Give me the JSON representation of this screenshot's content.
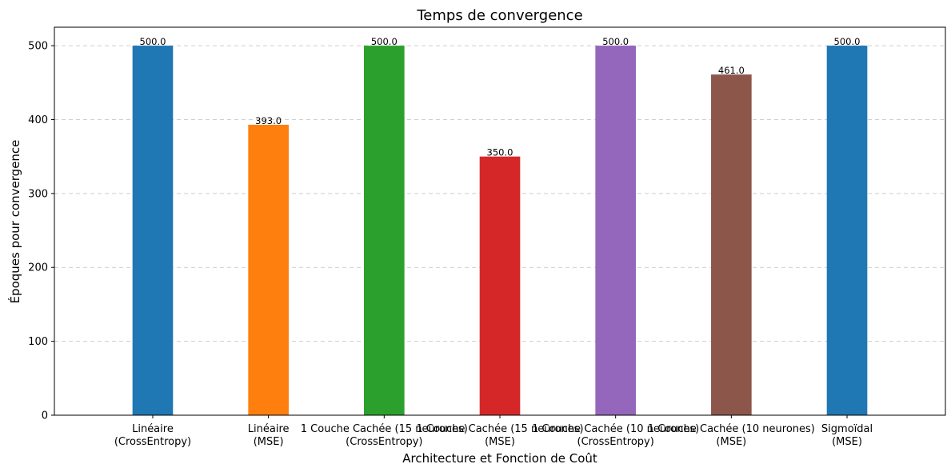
{
  "chart_data": {
    "type": "bar",
    "title": "Temps de convergence",
    "xlabel": "Architecture et Fonction de Coût",
    "ylabel": "Époques pour convergence",
    "categories": [
      [
        "Linéaire",
        "(CrossEntropy)"
      ],
      [
        "Linéaire",
        "(MSE)"
      ],
      [
        "1 Couche Cachée (15 neurones)",
        "(CrossEntropy)"
      ],
      [
        "1 Couche Cachée (15 neurones)",
        "(MSE)"
      ],
      [
        "1 Couche Cachée (10 neurones)",
        "(CrossEntropy)"
      ],
      [
        "1 Couche Cachée (10 neurones)",
        "(MSE)"
      ],
      [
        "Sigmoïdal",
        "(MSE)"
      ]
    ],
    "values": [
      500,
      393,
      500,
      350,
      500,
      461,
      500
    ],
    "value_labels": [
      "500.0",
      "393.0",
      "500.0",
      "350.0",
      "500.0",
      "461.0",
      "500.0"
    ],
    "bar_colors": [
      "#1f77b4",
      "#ff7f0e",
      "#2ca02c",
      "#d62728",
      "#9467bd",
      "#8c564b",
      "#1f77b4"
    ],
    "yticks": [
      0,
      100,
      200,
      300,
      400,
      500
    ],
    "ylim": [
      0,
      525
    ],
    "grid": "y-dashed",
    "legend": "none"
  }
}
